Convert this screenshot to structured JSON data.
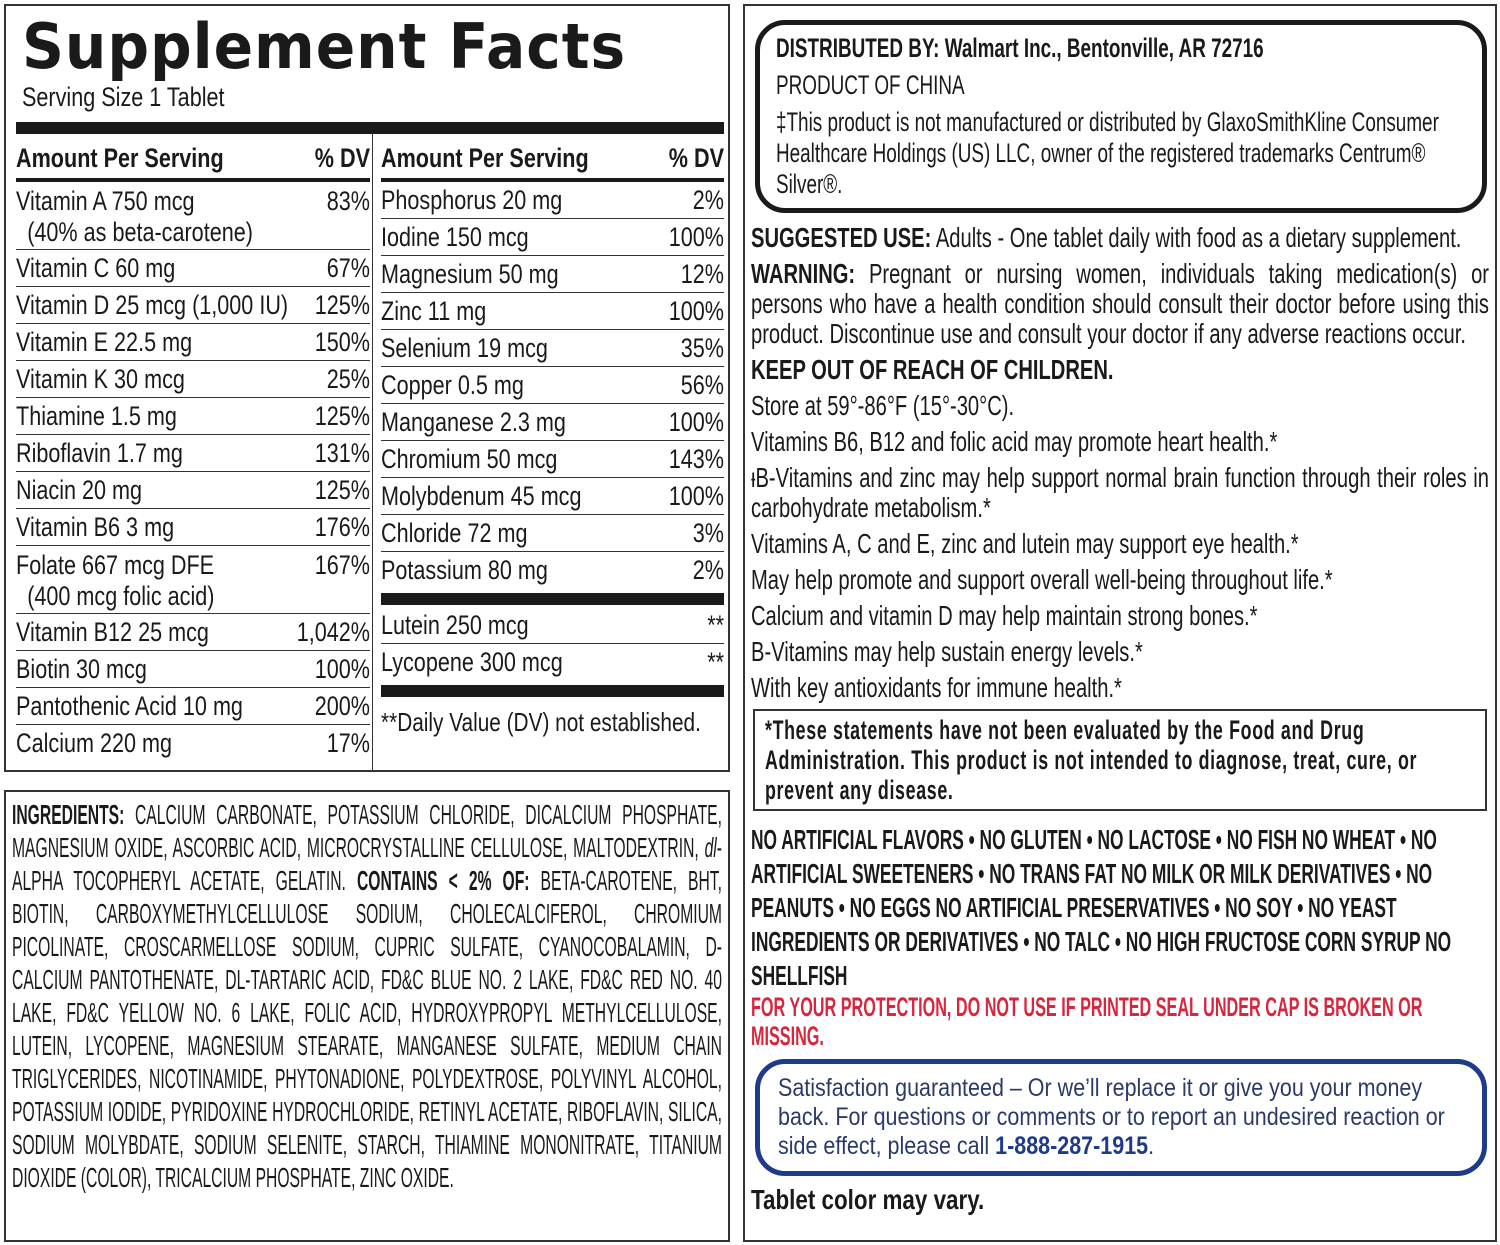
{
  "facts": {
    "title": "Supplement Facts",
    "serving_size": "Serving Size 1 Tablet",
    "header_amount": "Amount Per Serving",
    "header_dv": "% DV",
    "left_rows": [
      {
        "name": "Vitamin A 750 mcg",
        "sub": "(40% as beta-carotene)",
        "dv": "83%"
      },
      {
        "name": "Vitamin C 60 mg",
        "dv": "67%"
      },
      {
        "name": "Vitamin D 25 mcg (1,000 IU)",
        "dv": "125%"
      },
      {
        "name": "Vitamin E 22.5 mg",
        "dv": "150%"
      },
      {
        "name": "Vitamin K 30 mcg",
        "dv": "25%"
      },
      {
        "name": "Thiamine 1.5 mg",
        "dv": "125%"
      },
      {
        "name": "Riboflavin 1.7 mg",
        "dv": "131%"
      },
      {
        "name": "Niacin 20 mg",
        "dv": "125%"
      },
      {
        "name": "Vitamin B6 3 mg",
        "dv": "176%"
      },
      {
        "name": "Folate 667 mcg DFE",
        "sub": "(400 mcg folic acid)",
        "dv": "167%"
      },
      {
        "name": "Vitamin B12 25 mcg",
        "dv": "1,042%"
      },
      {
        "name": "Biotin 30 mcg",
        "dv": "100%"
      },
      {
        "name": "Pantothenic Acid 10 mg",
        "dv": "200%"
      },
      {
        "name": "Calcium 220 mg",
        "dv": "17%"
      }
    ],
    "right_rows": [
      {
        "name": "Phosphorus 20 mg",
        "dv": "2%"
      },
      {
        "name": "Iodine 150 mcg",
        "dv": "100%"
      },
      {
        "name": "Magnesium 50 mg",
        "dv": "12%"
      },
      {
        "name": "Zinc 11 mg",
        "dv": "100%"
      },
      {
        "name": "Selenium 19 mcg",
        "dv": "35%"
      },
      {
        "name": "Copper 0.5 mg",
        "dv": "56%"
      },
      {
        "name": "Manganese 2.3 mg",
        "dv": "100%"
      },
      {
        "name": "Chromium 50 mcg",
        "dv": "143%"
      },
      {
        "name": "Molybdenum 45 mcg",
        "dv": "100%"
      },
      {
        "name": "Chloride 72 mg",
        "dv": "3%"
      },
      {
        "name": "Potassium 80 mg",
        "dv": "2%"
      }
    ],
    "extra_rows": [
      {
        "name": "Lutein 250 mcg",
        "dv": "**"
      },
      {
        "name": "Lycopene 300 mcg",
        "dv": "**"
      }
    ],
    "footnote": "**Daily Value (DV) not established."
  },
  "ingredients": {
    "label": "INGREDIENTS:",
    "text1": " CALCIUM CARBONATE, POTASSIUM CHLORIDE, DICALCIUM PHOSPHATE, MAGNESIUM OXIDE, ASCORBIC ACID, MICROCRYSTALLINE CELLULOSE, MALTODEXTRIN, ",
    "italic": "dl",
    "text2": "-ALPHA TOCOPHERYL ACETATE, GELATIN. ",
    "contains_label": "CONTAINS < 2% OF:",
    "text3": " BETA-CAROTENE, BHT, BIOTIN, CARBOXYMETHYLCELLULOSE SODIUM, CHOLECALCIFEROL, CHROMIUM PICOLINATE, CROSCARMELLOSE SODIUM, CUPRIC SULFATE, CYANOCOBALAMIN, D-CALCIUM PANTOTHENATE, DL-TARTARIC ACID, FD&C BLUE NO. 2 LAKE, FD&C RED NO. 40 LAKE, FD&C YELLOW NO. 6 LAKE, FOLIC ACID, HYDROXYPROPYL METHYLCELLULOSE, LUTEIN, LYCOPENE, MAGNESIUM STEARATE, MANGANESE SULFATE, MEDIUM CHAIN TRIGLYCERIDES, NICOTINAMIDE, PHYTONADIONE, POLYDEXTROSE, POLYVINYL ALCOHOL, POTASSIUM IODIDE, PYRIDOXINE HYDROCHLORIDE, RETINYL ACETATE, RIBOFLAVIN, SILICA, SODIUM MOLYBDATE, SODIUM SELENITE, STARCH, THIAMINE MONONITRATE, TITANIUM DIOXIDE (COLOR), TRICALCIUM PHOSPHATE, ZINC OXIDE."
  },
  "distributor": {
    "line1": "DISTRIBUTED BY: Walmart Inc., Bentonville, AR 72716",
    "line2": "PRODUCT OF CHINA",
    "line3": "‡This product is not manufactured or distributed by GlaxoSmithKline Consumer Healthcare Holdings (US) LLC, owner of the registered trademarks Centrum® Silver®."
  },
  "info": {
    "use_label": "SUGGESTED USE:",
    "use_text": " Adults - One tablet daily with food as a dietary supplement.",
    "warning_label": "WARNING:",
    "warning_text": " Pregnant or nursing women, individuals taking medication(s) or persons who have a health condition should consult their doctor before using this product. Discontinue use and consult your doctor if any adverse reactions occur.",
    "keep_out": "KEEP OUT OF REACH OF CHILDREN.",
    "lines": [
      "Store at 59°-86°F (15°-30°C).",
      "Vitamins B6, B12 and folic acid may promote heart health.*",
      "ᵻB-Vitamins and zinc may help support normal brain function through their roles in carbohydrate metabolism.*",
      "Vitamins A, C and E, zinc and lutein may support eye health.*",
      "May help promote and support overall well-being throughout life.*",
      "Calcium and vitamin D may help maintain strong bones.*",
      "B-Vitamins may help sustain energy levels.*",
      "With key antioxidants for immune health.*"
    ],
    "fda_statement": "*These statements have not been evaluated by the Food and Drug Administration. This product is not intended to diagnose, treat, cure, or prevent any disease.",
    "claims": "NO ARTIFICIAL FLAVORS • NO GLUTEN • NO LACTOSE • NO FISH NO WHEAT • NO ARTIFICIAL SWEETENERS • NO TRANS FAT NO MILK OR MILK DERIVATIVES • NO PEANUTS • NO EGGS NO ARTIFICIAL PRESERVATIVES • NO SOY • NO YEAST INGREDIENTS OR DERIVATIVES • NO TALC • NO HIGH FRUCTOSE CORN SYRUP NO SHELLFISH",
    "protection": "FOR YOUR PROTECTION, DO NOT USE IF PRINTED SEAL UNDER CAP IS BROKEN OR MISSING.",
    "satisfaction": "Satisfaction guaranteed – Or we’ll replace it or give you your money back. For questions or comments or to report an undesired reaction or side effect, please call ",
    "phone": "1-888-287-1915",
    "satisfaction_end": ".",
    "tablet_color": "Tablet color may vary."
  },
  "colors": {
    "warning_red": "#d7263d",
    "satisfaction_blue": "#1e3a8a"
  }
}
